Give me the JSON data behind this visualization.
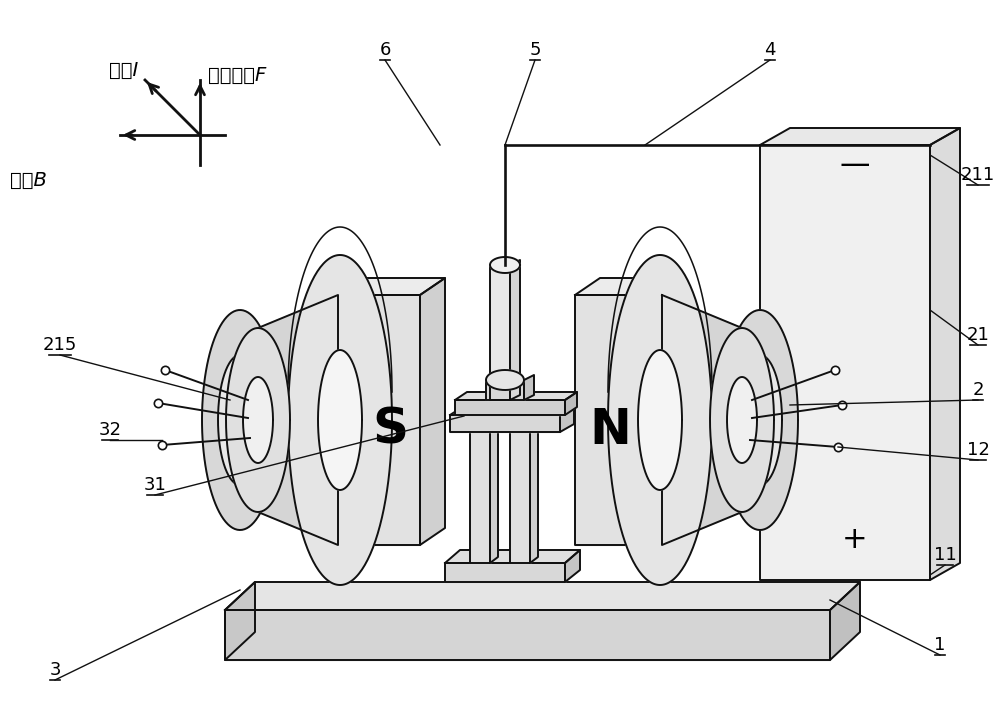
{
  "bg": "#ffffff",
  "lc": "#111111",
  "lw": 1.4,
  "fs": 14,
  "gray_light": "#e8e8e8",
  "gray_mid": "#d0d0d0",
  "gray_dark": "#b8b8b8",
  "white": "#ffffff",
  "s_text": "S",
  "n_text": "N",
  "plus_text": "+",
  "minus_text": "—",
  "label_lorentz": "洛伦兹力F",
  "label_current": "电流I",
  "label_field": "磁圻B"
}
